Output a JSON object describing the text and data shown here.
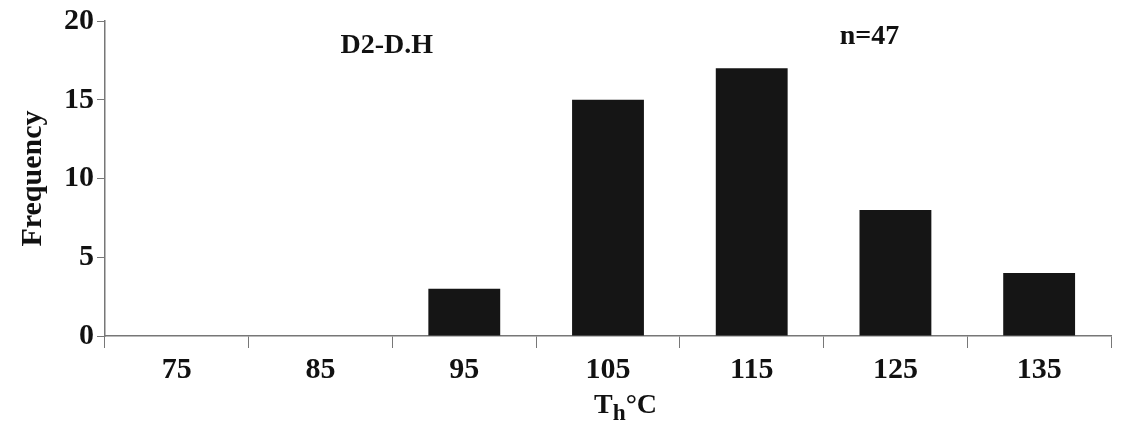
{
  "chart_data": {
    "type": "bar",
    "xlabel": "T$_{h}$°C",
    "ylabel": "Frequency",
    "categories": [
      "75",
      "85",
      "95",
      "105",
      "115",
      "125",
      "135"
    ],
    "values": [
      0,
      0,
      3,
      15,
      17,
      8,
      4
    ],
    "color": "#151515",
    "ylim": [
      0,
      20
    ],
    "yticks": [
      0,
      5,
      10,
      15,
      20
    ],
    "grid": false,
    "legend": false,
    "annotations": [
      "D2-D.H",
      "n=47"
    ]
  }
}
